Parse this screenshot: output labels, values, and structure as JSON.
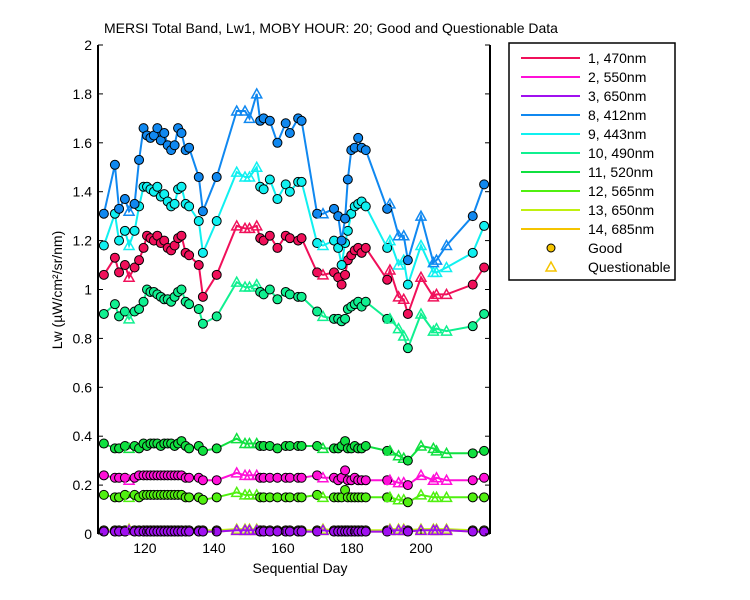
{
  "chart_data": {
    "type": "line",
    "title": "MERSI Total Band,  Lw1, MOBY HOUR: 20;  Good and Questionable Data",
    "xlabel": "Sequential Day",
    "ylabel": "Lw (µW/cm²/sr/nm)",
    "xlim": [
      106.4,
      220
    ],
    "ylim": [
      0,
      2
    ],
    "xticks": [
      "120",
      "140",
      "160",
      "180",
      "200"
    ],
    "xtick_values": [
      120,
      140,
      160,
      180,
      200
    ],
    "yticks": [
      "0",
      "0.2",
      "0.4",
      "0.6",
      "0.8",
      "1",
      "1.2",
      "1.4",
      "1.6",
      "1.8",
      "2"
    ],
    "ytick_values": [
      0,
      0.2,
      0.4,
      0.6,
      0.8,
      1,
      1.2,
      1.4,
      1.6,
      1.8,
      2
    ],
    "legend_position": "outside-right",
    "x": [
      108.1,
      111.3,
      112.5,
      114.2,
      115.4,
      117.0,
      118.3,
      119.6,
      120.6,
      121.6,
      122.6,
      123.6,
      124.6,
      125.6,
      126.6,
      127.6,
      128.6,
      129.6,
      130.6,
      131.8,
      132.8,
      135.6,
      136.8,
      140.8,
      146.6,
      149.0,
      150.3,
      152.4,
      153.4,
      154.4,
      156.2,
      158.4,
      160.8,
      162.0,
      164.4,
      165.4,
      169.9,
      171.6,
      174.8,
      176.0,
      177.0,
      178.0,
      178.8,
      179.8,
      180.8,
      181.8,
      182.8,
      184.0,
      190.2,
      191.0,
      193.5,
      195.0,
      196.2,
      200.0,
      203.6,
      204.5,
      207.4,
      215.0,
      218.3
    ],
    "quality": "GGGGQGGGGGGGGGGGGGGGGGGGQQQQGGGGGGGGGQGGGGGGGGGGGQQQGQQQQGG",
    "quality_legend": {
      "good": "Good",
      "questionable": "Questionable"
    },
    "marker_legend_color": "#f5c400",
    "series": [
      {
        "name": "1, 470nm",
        "color": "#f0105a",
        "values": [
          1.06,
          1.13,
          1.07,
          1.1,
          1.05,
          1.09,
          1.12,
          1.17,
          1.22,
          1.21,
          1.2,
          1.22,
          1.19,
          1.2,
          1.17,
          1.16,
          1.18,
          1.21,
          1.22,
          1.15,
          1.14,
          1.1,
          0.97,
          1.06,
          1.26,
          1.25,
          1.25,
          1.26,
          1.21,
          1.2,
          1.22,
          1.17,
          1.22,
          1.21,
          1.2,
          1.21,
          1.07,
          1.06,
          1.07,
          1.05,
          1.02,
          1.06,
          1.12,
          1.14,
          1.16,
          1.17,
          1.15,
          1.17,
          1.04,
          1.08,
          0.97,
          0.96,
          0.9,
          1.05,
          0.97,
          0.98,
          0.98,
          1.02,
          1.09
        ]
      },
      {
        "name": "2, 550nm",
        "color": "#ff10d8",
        "values": [
          0.24,
          0.23,
          0.23,
          0.23,
          0.22,
          0.23,
          0.24,
          0.24,
          0.24,
          0.24,
          0.24,
          0.24,
          0.24,
          0.24,
          0.24,
          0.24,
          0.24,
          0.24,
          0.24,
          0.23,
          0.23,
          0.23,
          0.22,
          0.22,
          0.25,
          0.24,
          0.24,
          0.24,
          0.23,
          0.23,
          0.23,
          0.23,
          0.23,
          0.23,
          0.23,
          0.23,
          0.24,
          0.23,
          0.23,
          0.22,
          0.23,
          0.26,
          0.22,
          0.22,
          0.23,
          0.22,
          0.22,
          0.22,
          0.22,
          0.22,
          0.21,
          0.21,
          0.2,
          0.24,
          0.22,
          0.23,
          0.22,
          0.22,
          0.23
        ]
      },
      {
        "name": "3, 650nm",
        "color": "#a010f0",
        "constant": 0.01
      },
      {
        "name": "8, 412nm",
        "color": "#1088f0",
        "values": [
          1.31,
          1.51,
          1.33,
          1.37,
          1.32,
          1.35,
          1.53,
          1.66,
          1.63,
          1.62,
          1.63,
          1.66,
          1.61,
          1.64,
          1.59,
          1.57,
          1.59,
          1.66,
          1.64,
          1.57,
          1.58,
          1.46,
          1.32,
          1.46,
          1.73,
          1.73,
          1.7,
          1.8,
          1.69,
          1.7,
          1.69,
          1.6,
          1.68,
          1.64,
          1.7,
          1.69,
          1.31,
          1.31,
          1.33,
          1.3,
          1.2,
          1.29,
          1.45,
          1.57,
          1.58,
          1.62,
          1.58,
          1.57,
          1.33,
          1.35,
          1.22,
          1.22,
          1.12,
          1.3,
          1.11,
          1.12,
          1.18,
          1.3,
          1.43
        ]
      },
      {
        "name": "9, 443nm",
        "color": "#10f0f0",
        "values": [
          1.18,
          1.31,
          1.2,
          1.24,
          1.18,
          1.24,
          1.34,
          1.42,
          1.42,
          1.41,
          1.4,
          1.42,
          1.38,
          1.39,
          1.36,
          1.34,
          1.35,
          1.41,
          1.42,
          1.35,
          1.34,
          1.28,
          1.15,
          1.28,
          1.48,
          1.46,
          1.46,
          1.5,
          1.42,
          1.41,
          1.45,
          1.37,
          1.43,
          1.4,
          1.44,
          1.44,
          1.19,
          1.18,
          1.2,
          1.17,
          1.1,
          1.19,
          1.24,
          1.31,
          1.34,
          1.35,
          1.36,
          1.34,
          1.17,
          1.2,
          1.1,
          1.12,
          1.02,
          1.18,
          1.07,
          1.07,
          1.09,
          1.15,
          1.26
        ]
      },
      {
        "name": "10, 490nm",
        "color": "#10f090",
        "values": [
          0.9,
          0.94,
          0.89,
          0.91,
          0.88,
          0.91,
          0.92,
          0.95,
          1.0,
          0.99,
          0.99,
          0.98,
          0.97,
          0.96,
          0.96,
          0.95,
          0.97,
          0.99,
          1.0,
          0.95,
          0.94,
          0.92,
          0.86,
          0.89,
          1.03,
          1.01,
          1.01,
          1.02,
          0.99,
          0.98,
          1.0,
          0.96,
          0.99,
          0.98,
          0.97,
          0.97,
          0.91,
          0.89,
          0.88,
          0.88,
          0.87,
          0.88,
          0.92,
          0.93,
          0.94,
          0.95,
          0.93,
          0.95,
          0.88,
          0.88,
          0.84,
          0.81,
          0.76,
          0.9,
          0.83,
          0.84,
          0.83,
          0.85,
          0.9
        ]
      },
      {
        "name": "11, 520nm",
        "color": "#10e040",
        "values": [
          0.37,
          0.35,
          0.35,
          0.36,
          0.35,
          0.36,
          0.35,
          0.37,
          0.36,
          0.37,
          0.37,
          0.37,
          0.36,
          0.37,
          0.37,
          0.37,
          0.36,
          0.37,
          0.38,
          0.36,
          0.35,
          0.36,
          0.34,
          0.35,
          0.39,
          0.37,
          0.37,
          0.37,
          0.36,
          0.36,
          0.36,
          0.35,
          0.36,
          0.36,
          0.36,
          0.36,
          0.36,
          0.35,
          0.35,
          0.35,
          0.36,
          0.38,
          0.35,
          0.35,
          0.36,
          0.35,
          0.35,
          0.36,
          0.34,
          0.34,
          0.32,
          0.31,
          0.3,
          0.36,
          0.35,
          0.34,
          0.33,
          0.33,
          0.34
        ]
      },
      {
        "name": "12, 565nm",
        "color": "#50f010",
        "values": [
          0.16,
          0.15,
          0.15,
          0.16,
          0.15,
          0.16,
          0.15,
          0.16,
          0.16,
          0.16,
          0.16,
          0.16,
          0.16,
          0.16,
          0.16,
          0.16,
          0.16,
          0.16,
          0.16,
          0.15,
          0.15,
          0.15,
          0.14,
          0.15,
          0.17,
          0.16,
          0.16,
          0.16,
          0.15,
          0.15,
          0.15,
          0.15,
          0.15,
          0.15,
          0.15,
          0.15,
          0.16,
          0.15,
          0.15,
          0.15,
          0.15,
          0.18,
          0.15,
          0.15,
          0.15,
          0.15,
          0.15,
          0.15,
          0.15,
          0.15,
          0.14,
          0.14,
          0.13,
          0.16,
          0.15,
          0.15,
          0.15,
          0.15,
          0.15
        ]
      },
      {
        "name": "13, 650nm",
        "color": "#c0f010",
        "constant": 0.015
      },
      {
        "name": "14, 685nm",
        "color": "#f5c400",
        "constant": 0.01
      }
    ]
  }
}
